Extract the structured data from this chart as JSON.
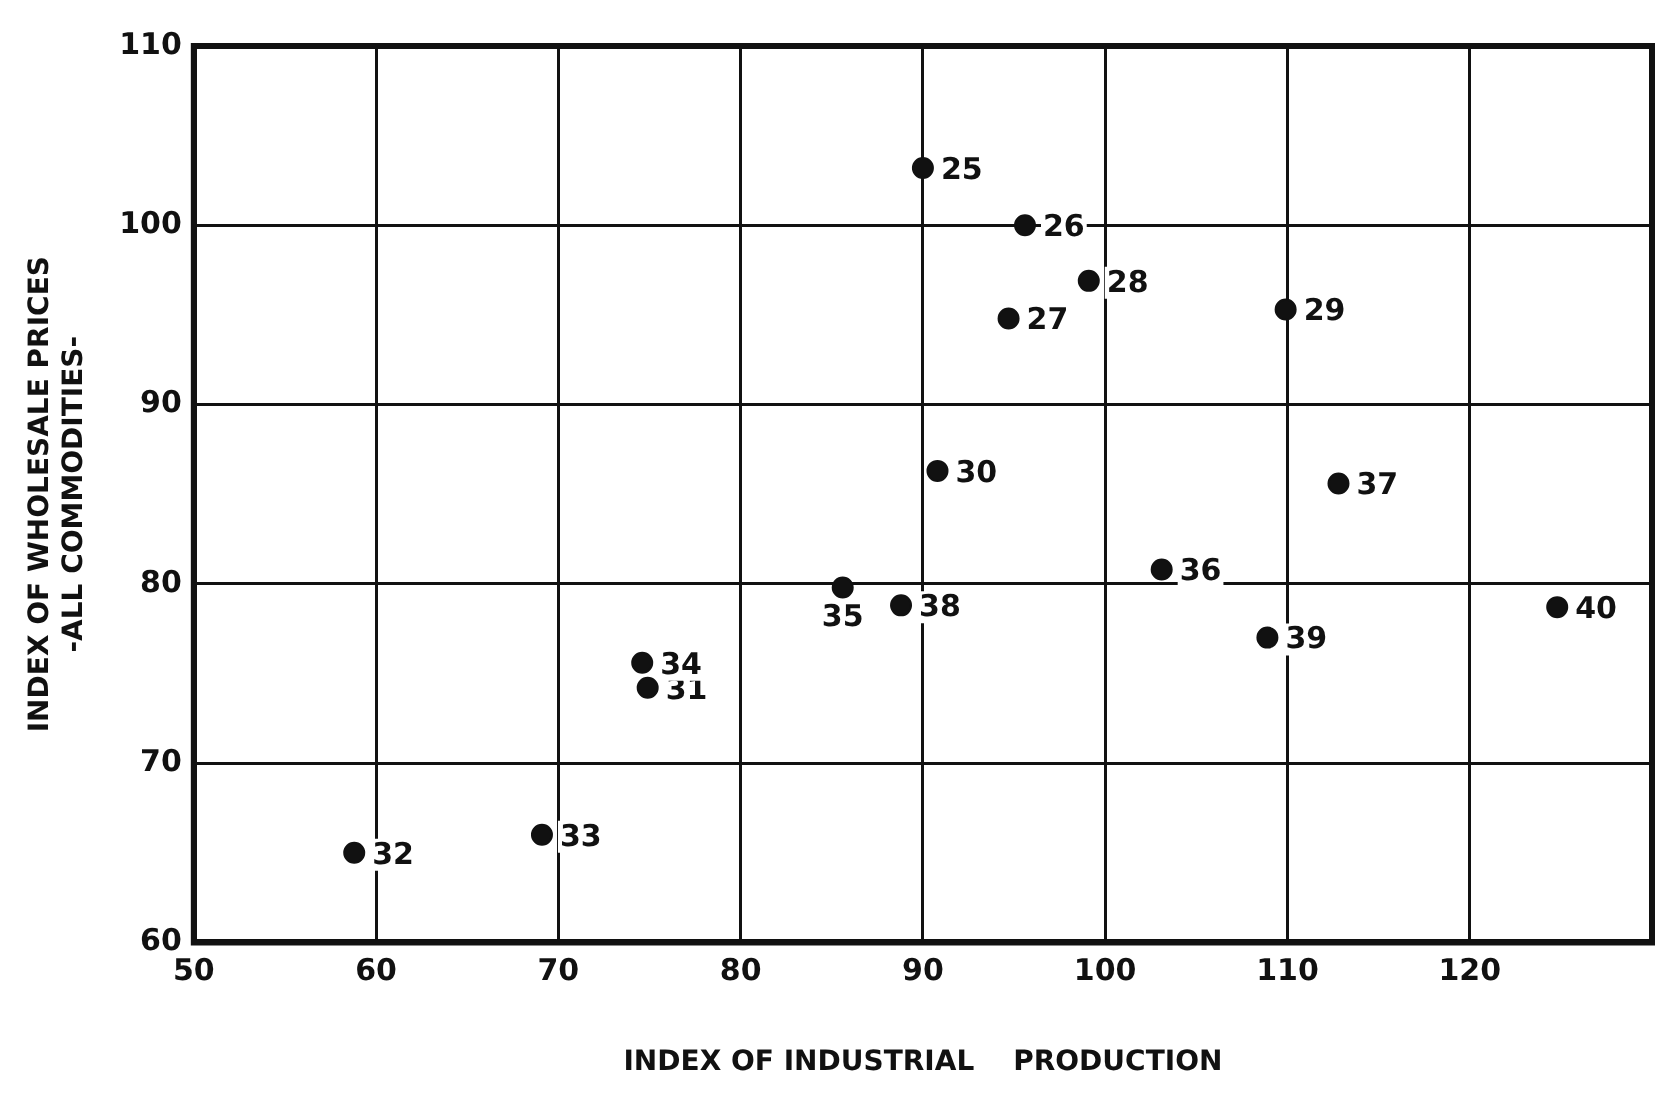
{
  "chart_data": {
    "type": "scatter",
    "xlabel": "INDEX OF INDUSTRIAL    PRODUCTION",
    "ylabel": "INDEX OF WHOLESALE PRICES\n-ALL COMMODITIES-",
    "x": [
      90.0,
      95.6,
      94.7,
      99.1,
      109.9,
      90.8,
      74.9,
      58.8,
      69.1,
      74.6,
      85.6,
      103.1,
      112.8,
      88.8,
      108.9,
      124.8
    ],
    "series": [
      {
        "color": "#111111",
        "values": [
          103.2,
          100.0,
          94.8,
          96.9,
          95.3,
          86.3,
          74.2,
          65.0,
          66.0,
          75.6,
          79.8,
          80.8,
          85.6,
          78.8,
          77.0,
          78.7
        ]
      }
    ],
    "annotations": [
      {
        "text": "25",
        "x": 90.0,
        "y": 103.2
      },
      {
        "text": "26",
        "x": 95.6,
        "y": 100.0
      },
      {
        "text": "27",
        "x": 94.7,
        "y": 94.8
      },
      {
        "text": "28",
        "x": 99.1,
        "y": 96.9
      },
      {
        "text": "29",
        "x": 109.9,
        "y": 95.3
      },
      {
        "text": "30",
        "x": 90.8,
        "y": 86.3
      },
      {
        "text": "31",
        "x": 74.9,
        "y": 74.2
      },
      {
        "text": "32",
        "x": 58.8,
        "y": 65.0
      },
      {
        "text": "33",
        "x": 69.1,
        "y": 66.0
      },
      {
        "text": "34",
        "x": 74.6,
        "y": 75.6
      },
      {
        "text": "35",
        "x": 85.6,
        "y": 79.8
      },
      {
        "text": "36",
        "x": 103.1,
        "y": 80.8
      },
      {
        "text": "37",
        "x": 112.8,
        "y": 85.6
      },
      {
        "text": "38",
        "x": 88.8,
        "y": 78.8
      },
      {
        "text": "39",
        "x": 108.9,
        "y": 77.0
      },
      {
        "text": "40",
        "x": 124.8,
        "y": 78.7
      }
    ],
    "xlim": [
      50,
      130
    ],
    "xticks": [
      50,
      60,
      70,
      80,
      90,
      100,
      110,
      120
    ],
    "ylim": [
      60,
      110
    ],
    "yticks": [
      60,
      70,
      80,
      90,
      100,
      110
    ],
    "grid": true,
    "marker": "circle",
    "legend": false
  }
}
